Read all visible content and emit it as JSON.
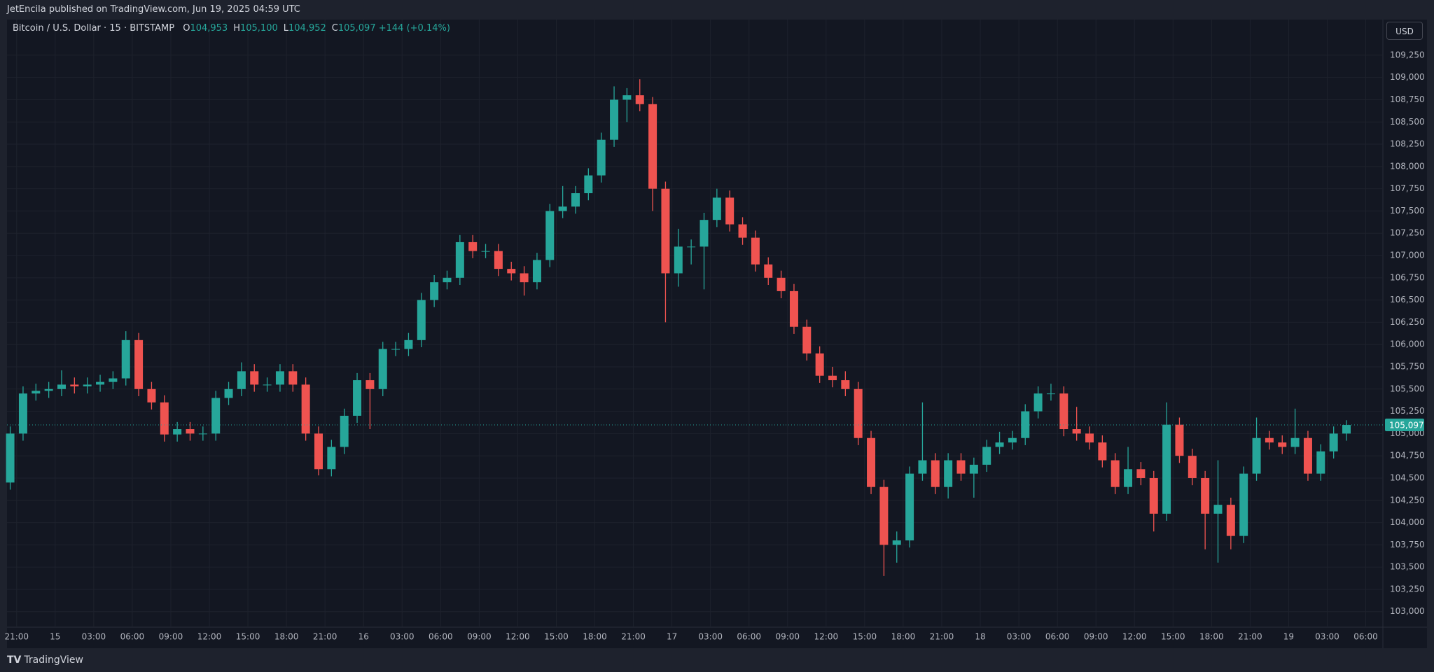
{
  "header": {
    "published": "JetEncila published on TradingView.com, Jun 19, 2025 04:59 UTC"
  },
  "footer": {
    "brand": "TradingView"
  },
  "currency_button": "USD",
  "chart_data": {
    "type": "candlestick",
    "title": "Bitcoin / U.S. Dollar · 15 · BITSTAMP",
    "ohlc": [
      {
        "key": "O",
        "value": 104953,
        "label": "104,953"
      },
      {
        "key": "H",
        "value": 105100,
        "label": "105,100"
      },
      {
        "key": "L",
        "value": 104952,
        "label": "104,952"
      },
      {
        "key": "C",
        "value": 105097,
        "label": "105,097"
      }
    ],
    "change": "+144 (+0.14%)",
    "last_price": {
      "value": 105097,
      "label": "105,097"
    },
    "up_color": "#26a69a",
    "down_color": "#ef5350",
    "grid": true,
    "x": [
      "14 20:00",
      "14 21:00",
      "14 22:00",
      "14 23:00",
      "15 00:00",
      "15 01:00",
      "15 02:00",
      "15 03:00",
      "15 04:00",
      "15 05:00",
      "15 06:00",
      "15 07:00",
      "15 08:00",
      "15 09:00",
      "15 10:00",
      "15 11:00",
      "15 12:00",
      "15 13:00",
      "15 14:00",
      "15 15:00",
      "15 16:00",
      "15 17:00",
      "15 18:00",
      "15 19:00",
      "15 20:00",
      "15 21:00",
      "15 22:00",
      "15 23:00",
      "16 00:00",
      "16 01:00",
      "16 02:00",
      "16 03:00",
      "16 04:00",
      "16 05:00",
      "16 06:00",
      "16 07:00",
      "16 08:00",
      "16 09:00",
      "16 10:00",
      "16 11:00",
      "16 12:00",
      "16 13:00",
      "16 14:00",
      "16 15:00",
      "16 16:00",
      "16 17:00",
      "16 18:00",
      "16 19:00",
      "16 20:00",
      "16 21:00",
      "16 22:00",
      "16 23:00",
      "17 00:00",
      "17 01:00",
      "17 02:00",
      "17 03:00",
      "17 04:00",
      "17 05:00",
      "17 06:00",
      "17 07:00",
      "17 08:00",
      "17 09:00",
      "17 10:00",
      "17 11:00",
      "17 12:00",
      "17 13:00",
      "17 14:00",
      "17 15:00",
      "17 16:00",
      "17 17:00",
      "17 18:00",
      "17 19:00",
      "17 20:00",
      "17 21:00",
      "17 22:00",
      "17 23:00",
      "18 00:00",
      "18 01:00",
      "18 02:00",
      "18 03:00",
      "18 04:00",
      "18 05:00",
      "18 06:00",
      "18 07:00",
      "18 08:00",
      "18 09:00",
      "18 10:00",
      "18 11:00",
      "18 12:00",
      "18 13:00",
      "18 14:00",
      "18 15:00",
      "18 16:00",
      "18 17:00",
      "18 18:00",
      "18 19:00",
      "18 20:00",
      "18 21:00",
      "18 22:00",
      "18 23:00",
      "19 00:00",
      "19 01:00",
      "19 02:00",
      "19 03:00",
      "19 04:00"
    ],
    "open": [
      104450,
      105000,
      105450,
      105480,
      105500,
      105550,
      105530,
      105550,
      105580,
      105620,
      106050,
      105500,
      105350,
      104990,
      105050,
      105000,
      105000,
      105400,
      105500,
      105700,
      105550,
      105550,
      105700,
      105550,
      105000,
      104600,
      104850,
      105200,
      105600,
      105500,
      105950,
      105950,
      106050,
      106500,
      106700,
      106750,
      107150,
      107050,
      107050,
      106850,
      106800,
      106700,
      106950,
      107500,
      107550,
      107700,
      107900,
      108300,
      108750,
      108800,
      108700,
      107750,
      106800,
      107100,
      107100,
      107400,
      107650,
      107350,
      107200,
      106900,
      106750,
      106600,
      106200,
      105900,
      105650,
      105600,
      105500,
      104950,
      104400,
      103750,
      103800,
      104550,
      104700,
      104400,
      104700,
      104550,
      104650,
      104850,
      104900,
      104950,
      105250,
      105450,
      105450,
      105050,
      105000,
      104900,
      104700,
      104400,
      104600,
      104500,
      104100,
      105100,
      104750,
      104500,
      104100,
      104200,
      103850,
      104550,
      104950,
      104900,
      104850,
      104950,
      104550,
      104800,
      105000
    ],
    "high": [
      105080,
      105530,
      105560,
      105580,
      105710,
      105630,
      105630,
      105660,
      105700,
      106150,
      106130,
      105580,
      105430,
      105130,
      105130,
      105080,
      105480,
      105580,
      105800,
      105780,
      105630,
      105780,
      105780,
      105630,
      105080,
      104930,
      105280,
      105680,
      105680,
      106030,
      106030,
      106130,
      106580,
      106780,
      106830,
      107230,
      107230,
      107130,
      107130,
      106930,
      106880,
      107030,
      107580,
      107780,
      107780,
      107980,
      108380,
      108900,
      108880,
      108980,
      108780,
      107830,
      107300,
      107180,
      107480,
      107750,
      107730,
      107430,
      107280,
      106980,
      106830,
      106680,
      106280,
      105980,
      105750,
      105700,
      105580,
      105030,
      104480,
      103900,
      104630,
      105350,
      104780,
      104780,
      104780,
      104730,
      104930,
      105020,
      105030,
      105330,
      105530,
      105560,
      105530,
      105300,
      105080,
      104980,
      104780,
      104850,
      104680,
      104580,
      105350,
      105180,
      104830,
      104580,
      104700,
      104280,
      104630,
      105180,
      105030,
      104980,
      105280,
      105030,
      104880,
      105080,
      105150
    ],
    "low": [
      104370,
      104920,
      105370,
      105400,
      105420,
      105450,
      105450,
      105470,
      105500,
      105540,
      105420,
      105270,
      104910,
      104910,
      104920,
      104920,
      104920,
      105320,
      105420,
      105470,
      105470,
      105470,
      105470,
      104920,
      104530,
      104520,
      104770,
      105120,
      105050,
      105420,
      105870,
      105870,
      105970,
      106420,
      106620,
      106670,
      106970,
      106970,
      106770,
      106720,
      106550,
      106620,
      106870,
      107420,
      107470,
      107620,
      107820,
      108220,
      108500,
      108620,
      107500,
      106250,
      106650,
      106900,
      106620,
      107320,
      107270,
      107120,
      106820,
      106670,
      106520,
      106120,
      105820,
      105570,
      105520,
      105420,
      104870,
      104320,
      103400,
      103550,
      103720,
      104470,
      104320,
      104270,
      104470,
      104280,
      104570,
      104770,
      104820,
      104870,
      105170,
      105370,
      104970,
      104920,
      104820,
      104620,
      104320,
      104320,
      104420,
      103900,
      104020,
      104670,
      104420,
      103700,
      103550,
      103700,
      103770,
      104470,
      104820,
      104770,
      104770,
      104470,
      104470,
      104720,
      104920
    ],
    "close": [
      105000,
      105450,
      105480,
      105500,
      105550,
      105530,
      105550,
      105580,
      105620,
      106050,
      105500,
      105350,
      104990,
      105050,
      105000,
      105000,
      105400,
      105500,
      105700,
      105550,
      105550,
      105700,
      105550,
      105000,
      104600,
      104850,
      105200,
      105600,
      105500,
      105950,
      105950,
      106050,
      106500,
      106700,
      106750,
      107150,
      107050,
      107050,
      106850,
      106800,
      106700,
      106950,
      107500,
      107550,
      107700,
      107900,
      108300,
      108750,
      108800,
      108700,
      107750,
      106800,
      107100,
      107100,
      107400,
      107650,
      107350,
      107200,
      106900,
      106750,
      106600,
      106200,
      105900,
      105650,
      105600,
      105500,
      104950,
      104400,
      103750,
      103800,
      104550,
      104700,
      104400,
      104700,
      104550,
      104650,
      104850,
      104900,
      104950,
      105250,
      105450,
      105450,
      105050,
      105000,
      104900,
      104700,
      104400,
      104600,
      104500,
      104100,
      105100,
      104750,
      104500,
      104100,
      104200,
      103850,
      104550,
      104950,
      104900,
      104850,
      104950,
      104550,
      104800,
      105000,
      105097
    ],
    "xlim": [
      "14 20:15",
      "19 07:20"
    ],
    "xticks": [
      {
        "value": "14 21:00",
        "label": "21:00"
      },
      {
        "value": "15 00:00",
        "label": "15"
      },
      {
        "value": "15 03:00",
        "label": "03:00"
      },
      {
        "value": "15 06:00",
        "label": "06:00"
      },
      {
        "value": "15 09:00",
        "label": "09:00"
      },
      {
        "value": "15 12:00",
        "label": "12:00"
      },
      {
        "value": "15 15:00",
        "label": "15:00"
      },
      {
        "value": "15 18:00",
        "label": "18:00"
      },
      {
        "value": "15 21:00",
        "label": "21:00"
      },
      {
        "value": "16 00:00",
        "label": "16"
      },
      {
        "value": "16 03:00",
        "label": "03:00"
      },
      {
        "value": "16 06:00",
        "label": "06:00"
      },
      {
        "value": "16 09:00",
        "label": "09:00"
      },
      {
        "value": "16 12:00",
        "label": "12:00"
      },
      {
        "value": "16 15:00",
        "label": "15:00"
      },
      {
        "value": "16 18:00",
        "label": "18:00"
      },
      {
        "value": "16 21:00",
        "label": "21:00"
      },
      {
        "value": "17 00:00",
        "label": "17"
      },
      {
        "value": "17 03:00",
        "label": "03:00"
      },
      {
        "value": "17 06:00",
        "label": "06:00"
      },
      {
        "value": "17 09:00",
        "label": "09:00"
      },
      {
        "value": "17 12:00",
        "label": "12:00"
      },
      {
        "value": "17 15:00",
        "label": "15:00"
      },
      {
        "value": "17 18:00",
        "label": "18:00"
      },
      {
        "value": "17 21:00",
        "label": "21:00"
      },
      {
        "value": "18 00:00",
        "label": "18"
      },
      {
        "value": "18 03:00",
        "label": "03:00"
      },
      {
        "value": "18 06:00",
        "label": "06:00"
      },
      {
        "value": "18 09:00",
        "label": "09:00"
      },
      {
        "value": "18 12:00",
        "label": "12:00"
      },
      {
        "value": "18 15:00",
        "label": "15:00"
      },
      {
        "value": "18 18:00",
        "label": "18:00"
      },
      {
        "value": "18 21:00",
        "label": "21:00"
      },
      {
        "value": "19 00:00",
        "label": "19"
      },
      {
        "value": "19 03:00",
        "label": "03:00"
      },
      {
        "value": "19 06:00",
        "label": "06:00"
      }
    ],
    "ylim": [
      102825,
      109650
    ],
    "yticks": [
      {
        "value": 103000,
        "label": "103,000"
      },
      {
        "value": 103250,
        "label": "103,250"
      },
      {
        "value": 103500,
        "label": "103,500"
      },
      {
        "value": 103750,
        "label": "103,750"
      },
      {
        "value": 104000,
        "label": "104,000"
      },
      {
        "value": 104250,
        "label": "104,250"
      },
      {
        "value": 104500,
        "label": "104,500"
      },
      {
        "value": 104750,
        "label": "104,750"
      },
      {
        "value": 105000,
        "label": "105,000"
      },
      {
        "value": 105250,
        "label": "105,250"
      },
      {
        "value": 105500,
        "label": "105,500"
      },
      {
        "value": 105750,
        "label": "105,750"
      },
      {
        "value": 106000,
        "label": "106,000"
      },
      {
        "value": 106250,
        "label": "106,250"
      },
      {
        "value": 106500,
        "label": "106,500"
      },
      {
        "value": 106750,
        "label": "106,750"
      },
      {
        "value": 107000,
        "label": "107,000"
      },
      {
        "value": 107250,
        "label": "107,250"
      },
      {
        "value": 107500,
        "label": "107,500"
      },
      {
        "value": 107750,
        "label": "107,750"
      },
      {
        "value": 108000,
        "label": "108,000"
      },
      {
        "value": 108250,
        "label": "108,250"
      },
      {
        "value": 108500,
        "label": "108,500"
      },
      {
        "value": 108750,
        "label": "108,750"
      },
      {
        "value": 109000,
        "label": "109,000"
      },
      {
        "value": 109250,
        "label": "109,250"
      }
    ]
  }
}
